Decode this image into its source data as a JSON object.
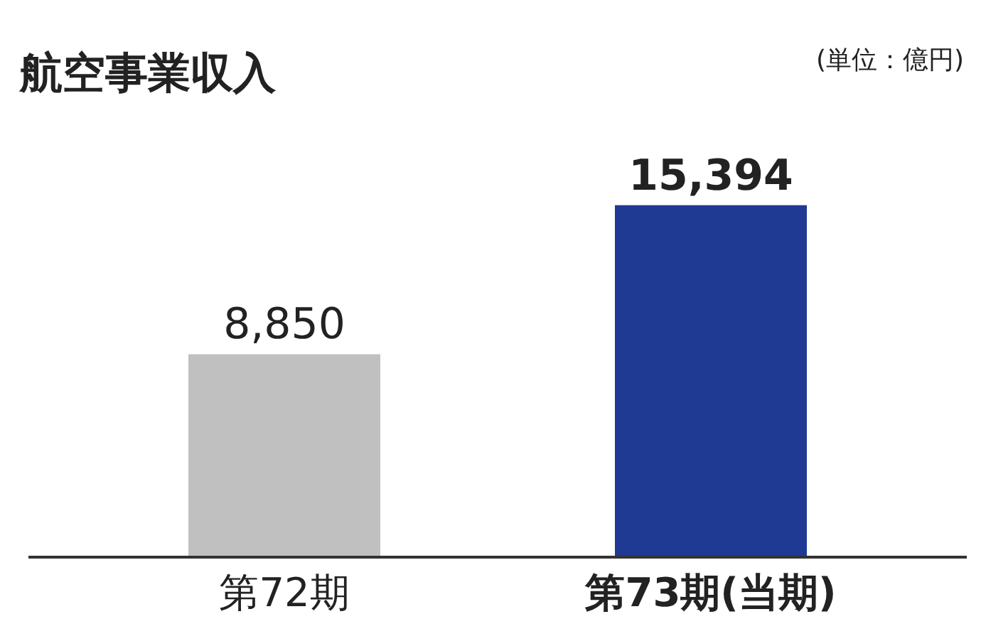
{
  "chart_data": {
    "type": "bar",
    "title": "航空事業収入",
    "subtitle": "(単位：億円)",
    "categories": [
      "第72期",
      "第73期(当期)"
    ],
    "values": [
      8850,
      15394
    ],
    "value_labels": [
      "8,850",
      "15,394"
    ],
    "colors": [
      "#c0c0c0",
      "#1f3a93"
    ],
    "legend": false
  }
}
